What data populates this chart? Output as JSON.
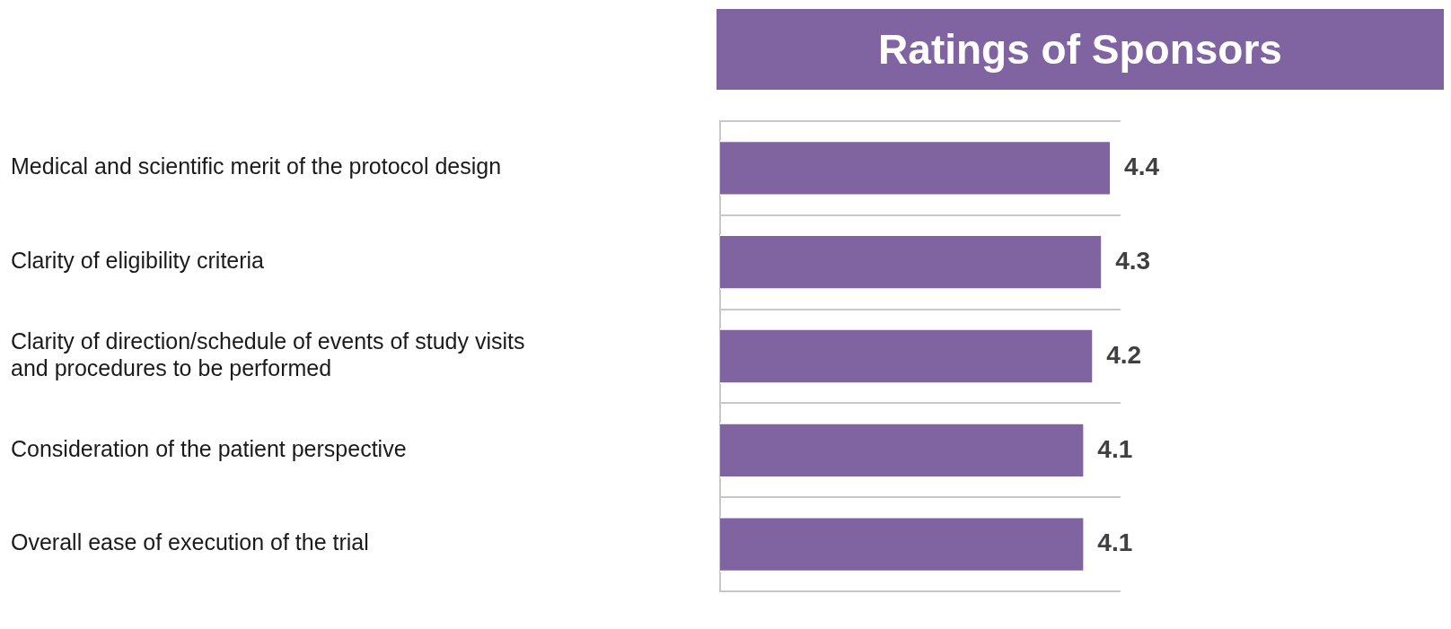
{
  "chart_data": {
    "type": "bar",
    "orientation": "horizontal",
    "title": "Ratings of Sponsors",
    "categories": [
      "Medical and scientific merit of the protocol design",
      "Clarity of eligibility criteria",
      "Clarity of direction/schedule of events of study visits and procedures to be performed",
      "Consideration of the patient perspective",
      "Overall ease of execution of the trial"
    ],
    "values": [
      4.4,
      4.3,
      4.2,
      4.1,
      4.1
    ],
    "color": "#8064a2",
    "tick_labels": "y",
    "data_labels": true,
    "grid": "y",
    "legend": false
  }
}
